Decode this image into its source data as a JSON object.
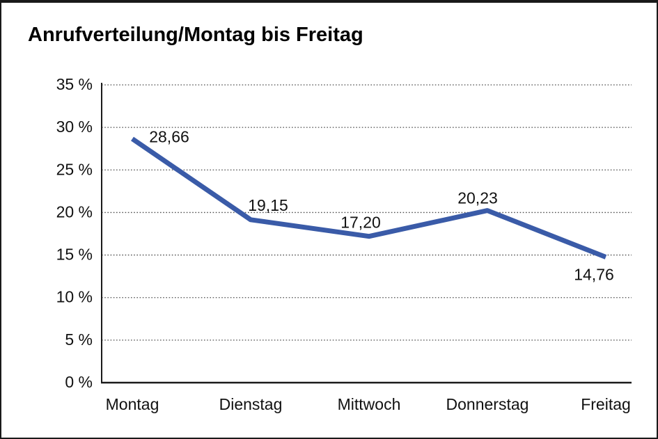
{
  "title": "Anrufverteilung/Montag bis Freitag",
  "chart_data": {
    "type": "line",
    "title": "Anrufverteilung/Montag bis Freitag",
    "categories": [
      "Montag",
      "Dienstag",
      "Mittwoch",
      "Donnerstag",
      "Freitag"
    ],
    "series": [
      {
        "name": "Anrufverteilung",
        "values": [
          28.66,
          19.15,
          17.2,
          20.23,
          14.76
        ],
        "data_labels": [
          "28,66",
          "19,15",
          "17,20",
          "20,23",
          "14,76"
        ]
      }
    ],
    "xlabel": "",
    "ylabel": "",
    "ylim": [
      0,
      35
    ],
    "ytick_step": 5,
    "ytick_labels": [
      "0 %",
      "5 %",
      "10 %",
      "15 %",
      "20 %",
      "25 %",
      "30 %",
      "35 %"
    ],
    "grid": "horizontal-dotted",
    "legend_position": "none",
    "colors": {
      "line": "#3A5BA8",
      "axis": "#1a1a1a",
      "gridline": "#4d4d4d",
      "text": "#111111",
      "background": "#ffffff",
      "border": "#111111"
    }
  }
}
